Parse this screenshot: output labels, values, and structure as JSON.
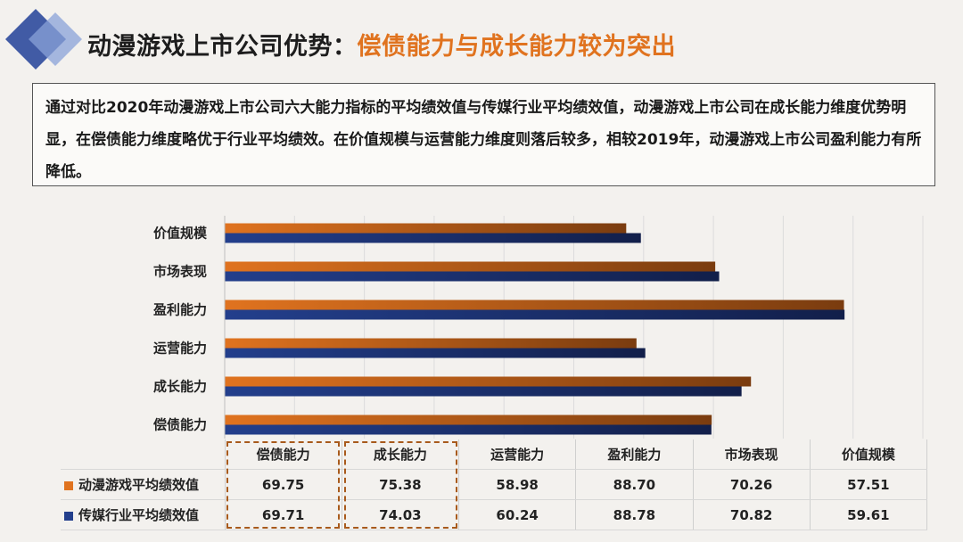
{
  "header": {
    "title_prefix": "动漫游戏上市公司优势：",
    "title_highlight": "偿债能力与成长能力较为突出"
  },
  "summary": {
    "text": "通过对比2020年动漫游戏上市公司六大能力指标的平均绩效值与传媒行业平均绩效值，动漫游戏上市公司在成长能力维度优势明显，在偿债能力维度略优于行业平均绩效。在价值规模与运营能力维度则落后较多，相较2019年，动漫游戏上市公司盈利能力有所降低。"
  },
  "colors": {
    "accent": "#e0731f",
    "series_orange": "#e0731f",
    "series_blue": "#233f8c",
    "diamond_dark": "#2d4a9c",
    "diamond_light": "#8aa2d8"
  },
  "chart_data": {
    "type": "bar",
    "orientation": "horizontal",
    "categories": [
      "偿债能力",
      "成长能力",
      "运营能力",
      "盈利能力",
      "市场表现",
      "价值规模"
    ],
    "series": [
      {
        "name": "动漫游戏平均绩效值",
        "values": [
          69.75,
          75.38,
          58.98,
          88.7,
          70.26,
          57.51
        ],
        "color": "#e0731f"
      },
      {
        "name": "传媒行业平均绩效值",
        "values": [
          69.71,
          74.03,
          60.24,
          88.78,
          70.82,
          59.61
        ],
        "color": "#233f8c"
      }
    ],
    "xlim": [
      0,
      100
    ],
    "grid": true,
    "legend": "table-bottom"
  },
  "table": {
    "headers": [
      "偿债能力",
      "成长能力",
      "运营能力",
      "盈利能力",
      "市场表现",
      "价值规模"
    ],
    "rows": [
      {
        "label": "动漫游戏平均绩效值",
        "color": "#e0731f",
        "values": [
          "69.75",
          "75.38",
          "58.98",
          "88.70",
          "70.26",
          "57.51"
        ]
      },
      {
        "label": "传媒行业平均绩效值",
        "color": "#233f8c",
        "values": [
          "69.71",
          "74.03",
          "60.24",
          "88.78",
          "70.82",
          "59.61"
        ]
      }
    ]
  }
}
